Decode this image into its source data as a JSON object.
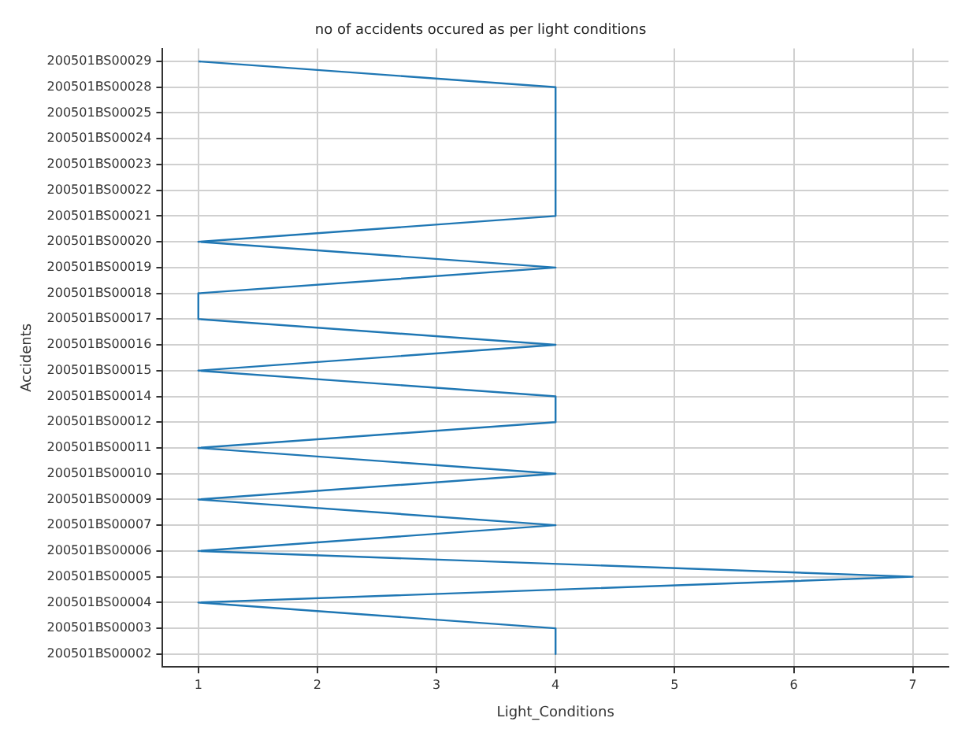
{
  "chart_data": {
    "type": "line",
    "title": "no of accidents occured as per light conditions",
    "xlabel": "Light_Conditions",
    "ylabel": "Accidents",
    "orientation": "horizontal",
    "categories": [
      "200501BS00029",
      "200501BS00028",
      "200501BS00025",
      "200501BS00024",
      "200501BS00023",
      "200501BS00022",
      "200501BS00021",
      "200501BS00020",
      "200501BS00019",
      "200501BS00018",
      "200501BS00017",
      "200501BS00016",
      "200501BS00015",
      "200501BS00014",
      "200501BS00012",
      "200501BS00011",
      "200501BS00010",
      "200501BS00009",
      "200501BS00007",
      "200501BS00006",
      "200501BS00005",
      "200501BS00004",
      "200501BS00003",
      "200501BS00002"
    ],
    "series": [
      {
        "color": "#1f77b4",
        "values": [
          1,
          4,
          4,
          4,
          4,
          4,
          4,
          1,
          4,
          1,
          1,
          4,
          1,
          4,
          4,
          1,
          4,
          1,
          4,
          1,
          7,
          1,
          4,
          4
        ]
      }
    ],
    "xlim": [
      0.7,
      7.3
    ],
    "xticks": [
      1,
      2,
      3,
      4,
      5,
      6,
      7
    ],
    "grid": true,
    "legend": false,
    "marker": "none",
    "line_style": "solid"
  }
}
